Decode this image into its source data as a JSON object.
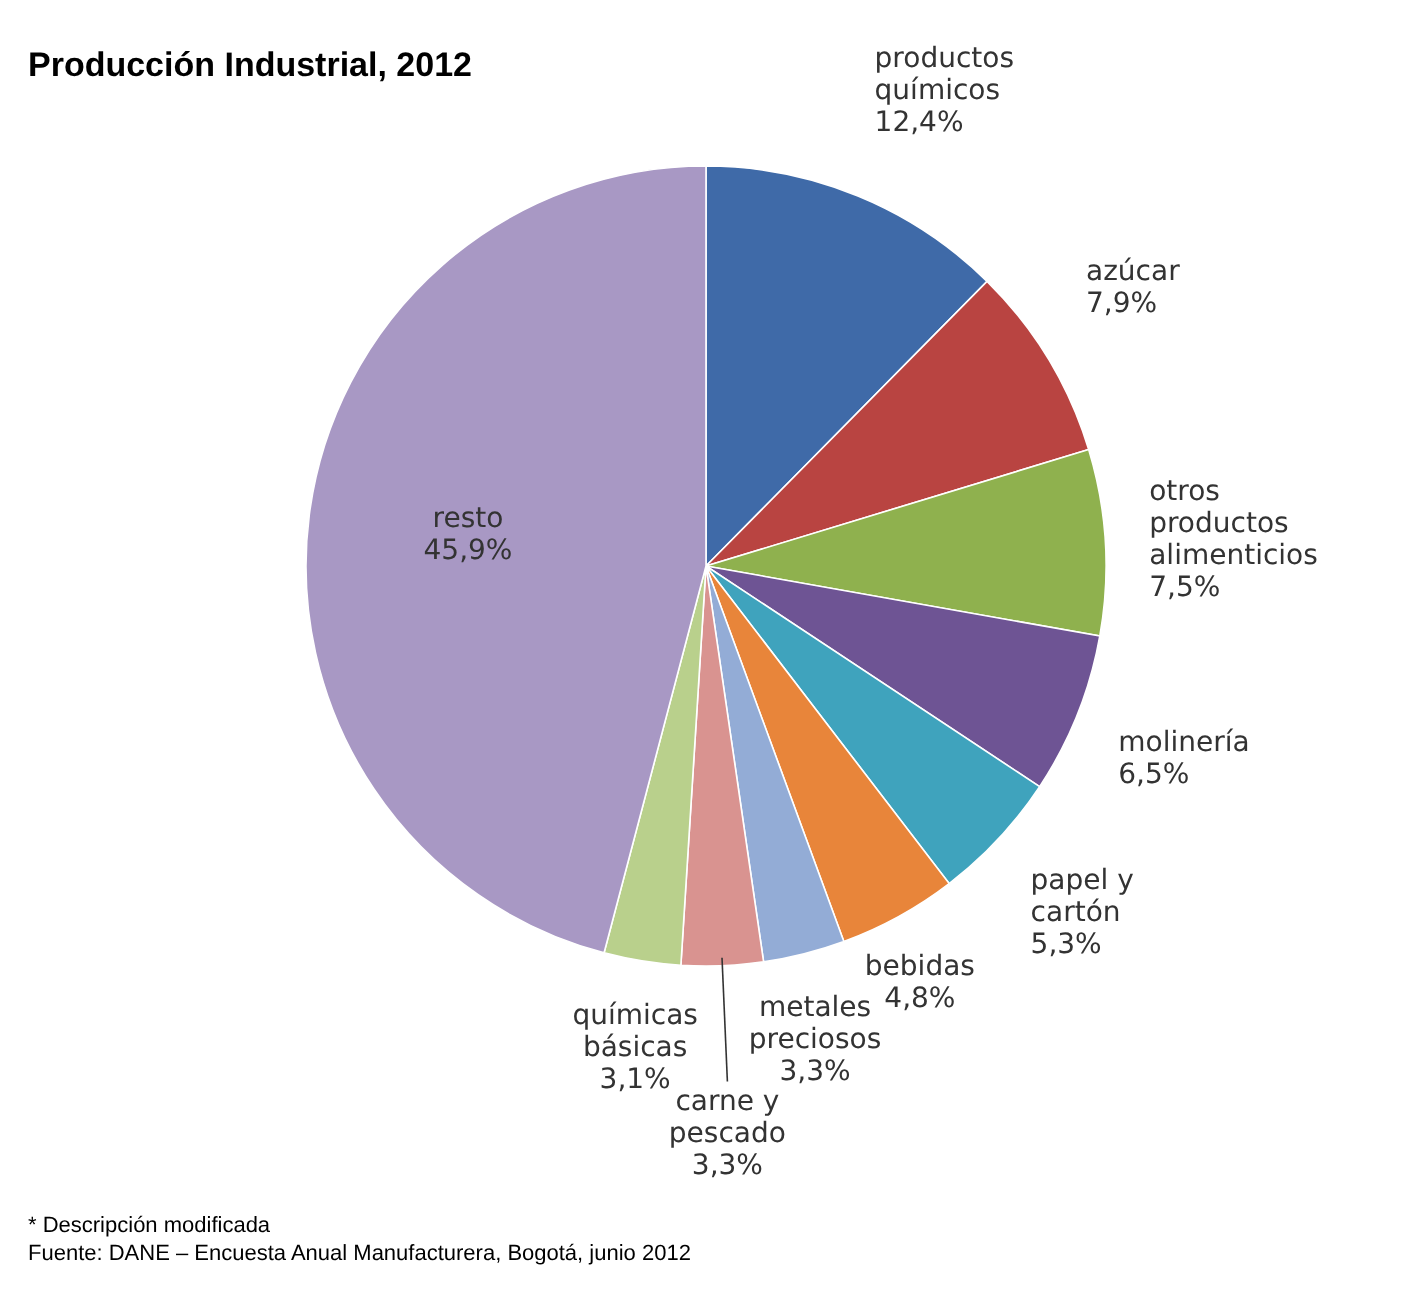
{
  "chart_data": {
    "type": "pie",
    "title": "Producción Industrial, 2012",
    "categories": [
      "productos químicos",
      "azúcar",
      "otros productos alimenticios",
      "molinería",
      "papel y cartón",
      "bebidas",
      "metales preciosos",
      "carne y pescado",
      "químicas básicas",
      "resto"
    ],
    "values": [
      12.4,
      7.9,
      7.5,
      6.5,
      5.3,
      4.8,
      3.3,
      3.3,
      3.1,
      45.9
    ],
    "value_labels": [
      "12,4%",
      "7,9%",
      "7,5%",
      "6,5%",
      "5,3%",
      "4,8%",
      "3,3%",
      "3,3%",
      "3,1%",
      "45,9%"
    ],
    "colors": [
      "#3f6aa8",
      "#b94441",
      "#8fb14e",
      "#6e5494",
      "#3fa3bd",
      "#e8853a",
      "#93acd6",
      "#d99390",
      "#b9d08c",
      "#a898c4"
    ],
    "annotations": [
      "* Descripción modificada",
      "Fuente: DANE – Encuesta Anual Manufacturera, Bogotá, junio 2012"
    ]
  }
}
